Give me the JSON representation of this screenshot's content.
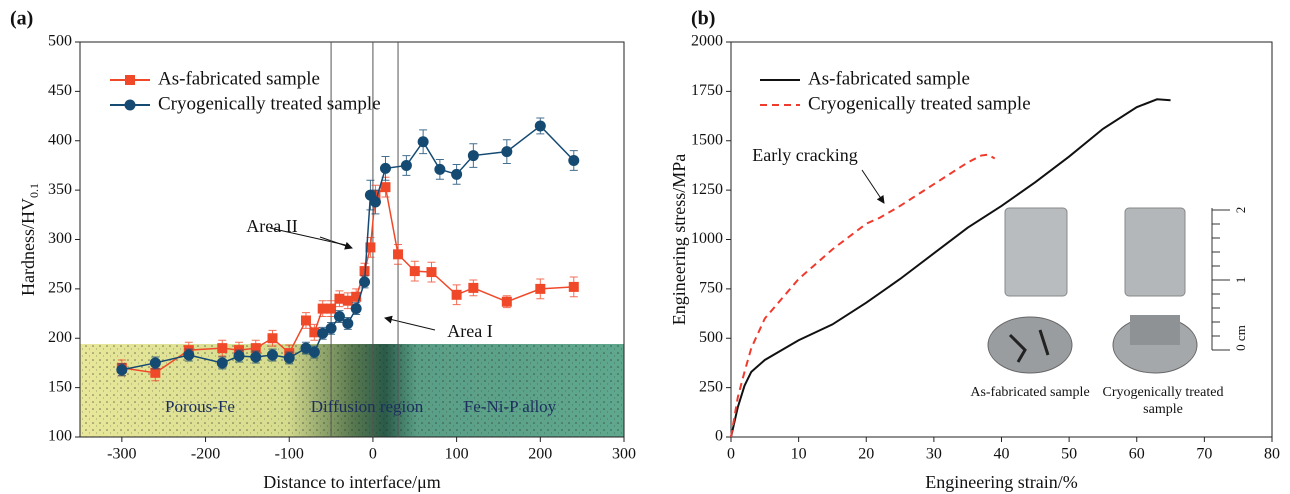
{
  "chart_data": [
    {
      "type": "scatter",
      "panel_label": "(a)",
      "xlabel": "Distance to interface/μm",
      "ylabel": "Hardness/HV",
      "ylabel_sub": "0.1",
      "xlim": [
        -350,
        300
      ],
      "xticks": [
        -300,
        -200,
        -100,
        0,
        100,
        200,
        300
      ],
      "ylim": [
        100,
        500
      ],
      "yticks": [
        100,
        150,
        200,
        250,
        300,
        350,
        400,
        450,
        500
      ],
      "legend": "upper left",
      "vlines": [
        -50,
        0,
        30
      ],
      "annotations": [
        "Area II",
        "Area I",
        "Porous-Fe",
        "Diffusion region",
        "Fe-Ni-P alloy"
      ],
      "series": [
        {
          "name": "As-fabricated sample",
          "color": "#f0492a",
          "marker": "square",
          "x": [
            -300,
            -260,
            -220,
            -180,
            -160,
            -140,
            -120,
            -100,
            -80,
            -70,
            -60,
            -50,
            -40,
            -30,
            -20,
            -10,
            -3,
            3,
            15,
            30,
            50,
            70,
            100,
            120,
            160,
            200,
            240
          ],
          "values": [
            170,
            165,
            188,
            190,
            188,
            190,
            200,
            185,
            218,
            206,
            230,
            230,
            240,
            238,
            242,
            268,
            292,
            345,
            353,
            285,
            268,
            267,
            244,
            251,
            237,
            250,
            252
          ],
          "errors": [
            8,
            8,
            8,
            8,
            8,
            8,
            8,
            8,
            8,
            8,
            8,
            8,
            8,
            8,
            8,
            8,
            10,
            10,
            10,
            10,
            10,
            10,
            10,
            8,
            6,
            10,
            10
          ]
        },
        {
          "name": "Cryogenically treated sample",
          "color": "#154a72",
          "marker": "circle",
          "x": [
            -300,
            -260,
            -220,
            -180,
            -160,
            -140,
            -120,
            -100,
            -80,
            -70,
            -60,
            -50,
            -40,
            -30,
            -20,
            -10,
            -3,
            3,
            15,
            40,
            60,
            80,
            100,
            120,
            160,
            200,
            240
          ],
          "values": [
            168,
            175,
            183,
            175,
            182,
            181,
            183,
            180,
            190,
            186,
            205,
            210,
            222,
            215,
            230,
            257,
            345,
            338,
            372,
            375,
            399,
            371,
            366,
            385,
            389,
            415,
            380
          ],
          "errors": [
            6,
            6,
            6,
            6,
            6,
            6,
            6,
            6,
            6,
            6,
            6,
            6,
            6,
            6,
            6,
            6,
            15,
            12,
            12,
            10,
            12,
            10,
            10,
            12,
            12,
            8,
            10
          ]
        }
      ]
    },
    {
      "type": "line",
      "panel_label": "(b)",
      "xlabel": "Engineering strain/%",
      "ylabel": "Engineering stress/MPa",
      "xlim": [
        0,
        80
      ],
      "xticks": [
        0,
        10,
        20,
        30,
        40,
        50,
        60,
        70,
        80
      ],
      "ylim": [
        0,
        2000
      ],
      "yticks": [
        0,
        250,
        500,
        750,
        1000,
        1250,
        1500,
        1750,
        2000
      ],
      "legend": "upper left",
      "annotations": [
        "Early cracking"
      ],
      "inset": {
        "labels": [
          "As-fabricated sample",
          "Cryogenically treated",
          "sample"
        ],
        "scale": [
          "2",
          "1",
          "0 cm"
        ]
      },
      "series": [
        {
          "name": "As-fabricated sample",
          "color": "#111111",
          "linestyle": "solid",
          "x": [
            0,
            1,
            2,
            3,
            5,
            8,
            10,
            15,
            20,
            25,
            30,
            35,
            40,
            45,
            50,
            55,
            60,
            63,
            65
          ],
          "values": [
            0,
            150,
            260,
            330,
            390,
            450,
            490,
            570,
            680,
            800,
            930,
            1060,
            1170,
            1290,
            1420,
            1560,
            1670,
            1710,
            1705
          ]
        },
        {
          "name": "Cryogenically treated sample",
          "color": "#f03a2e",
          "linestyle": "dashed",
          "x": [
            0,
            1,
            2,
            3,
            5,
            8,
            10,
            15,
            20,
            22,
            25,
            30,
            35,
            37,
            38,
            39
          ],
          "values": [
            0,
            200,
            330,
            450,
            600,
            720,
            800,
            950,
            1080,
            1110,
            1170,
            1280,
            1390,
            1425,
            1430,
            1410
          ]
        }
      ]
    }
  ]
}
